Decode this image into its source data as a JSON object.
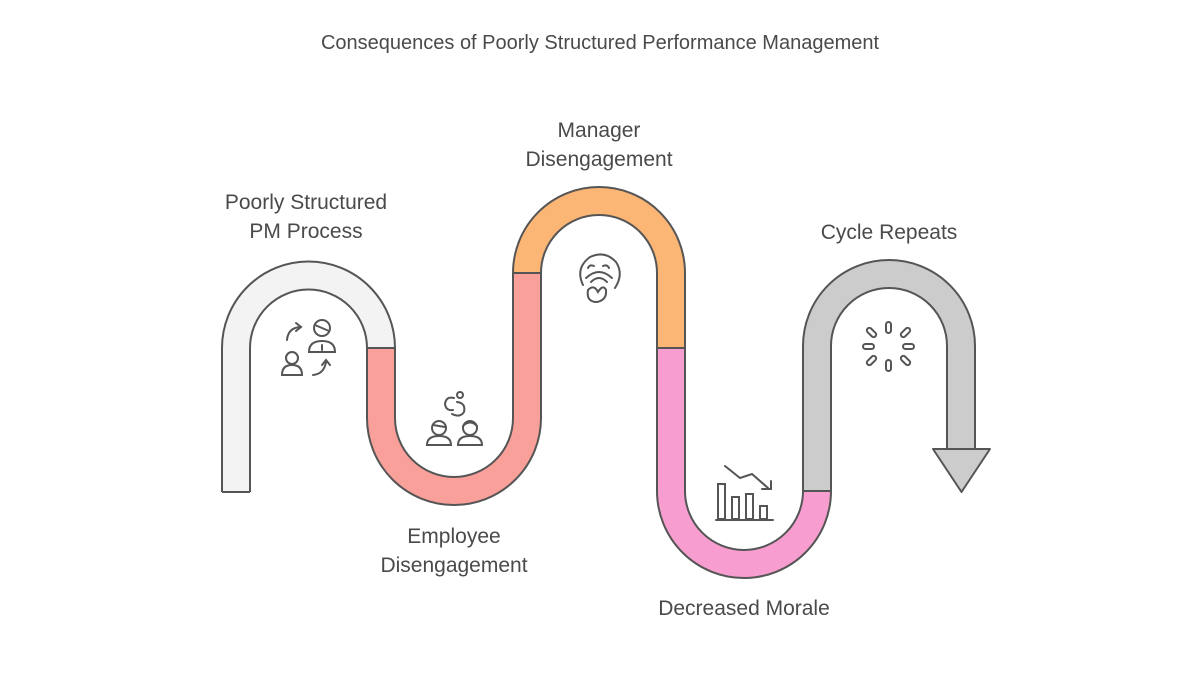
{
  "title": "Consequences of Poorly Structured Performance Management",
  "steps": [
    {
      "line1": "Poorly Structured",
      "line2": "PM Process",
      "color": "#f3f3f3",
      "icon": "people-cycle-icon"
    },
    {
      "line1": "Employee",
      "line2": "Disengagement",
      "color": "#f9a09a",
      "icon": "disconnected-people-icon"
    },
    {
      "line1": "Manager",
      "line2": "Disengagement",
      "color": "#fbb574",
      "icon": "yawning-face-icon"
    },
    {
      "line1": "Decreased Morale",
      "line2": "",
      "color": "#f79dd0",
      "icon": "declining-chart-icon"
    },
    {
      "line1": "Cycle Repeats",
      "line2": "",
      "color": "#cccccc",
      "icon": "loading-spinner-icon"
    }
  ],
  "outline_color": "#555555"
}
